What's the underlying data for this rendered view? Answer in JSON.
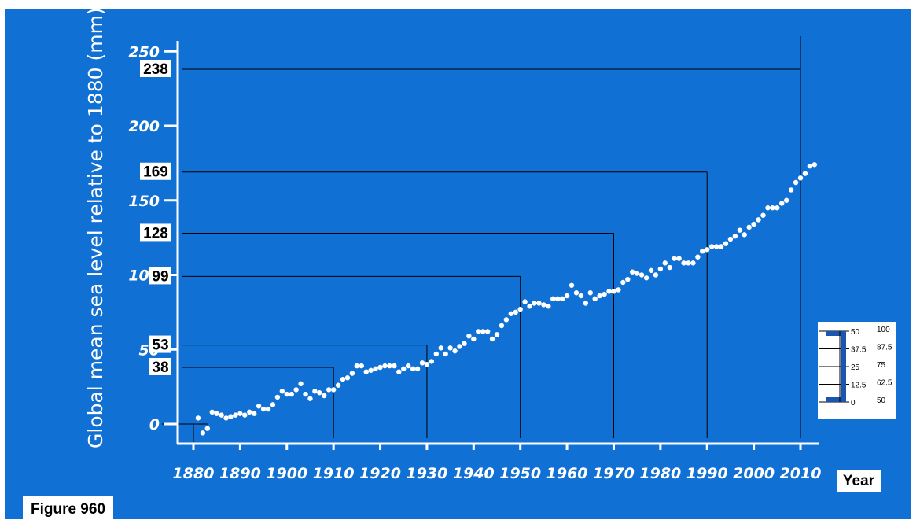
{
  "figure_label": "Figure 960",
  "chart_data": {
    "type": "scatter",
    "ylabel": "Global mean sea level relative to 1880 (mm)",
    "xlabel": "Year",
    "x_ticks": [
      1880,
      1890,
      1900,
      1910,
      1920,
      1930,
      1940,
      1950,
      1960,
      1970,
      1980,
      1990,
      2000,
      2010
    ],
    "y_ticks": [
      0,
      50,
      100,
      150,
      200,
      250
    ],
    "xlim": [
      1880,
      2013
    ],
    "ylim": [
      -10,
      255
    ],
    "marker_color": "#ffffff",
    "background_color": "#1170d4",
    "grid": false,
    "series": [
      {
        "points": [
          [
            1881,
            4
          ],
          [
            1882,
            -6
          ],
          [
            1883,
            -3
          ],
          [
            1884,
            8
          ],
          [
            1885,
            7
          ],
          [
            1886,
            6
          ],
          [
            1887,
            4
          ],
          [
            1888,
            5
          ],
          [
            1889,
            6
          ],
          [
            1890,
            7
          ],
          [
            1891,
            6
          ],
          [
            1892,
            8
          ],
          [
            1893,
            7
          ],
          [
            1894,
            12
          ],
          [
            1895,
            10
          ],
          [
            1896,
            10
          ],
          [
            1897,
            13
          ],
          [
            1898,
            18
          ],
          [
            1899,
            22
          ],
          [
            1900,
            20
          ],
          [
            1901,
            20
          ],
          [
            1902,
            23
          ],
          [
            1903,
            27
          ],
          [
            1904,
            20
          ],
          [
            1905,
            17
          ],
          [
            1906,
            22
          ],
          [
            1907,
            21
          ],
          [
            1908,
            19
          ],
          [
            1909,
            23
          ],
          [
            1910,
            23
          ],
          [
            1911,
            26
          ],
          [
            1912,
            30
          ],
          [
            1913,
            31
          ],
          [
            1914,
            34
          ],
          [
            1915,
            39
          ],
          [
            1916,
            39
          ],
          [
            1917,
            35
          ],
          [
            1918,
            36
          ],
          [
            1919,
            37
          ],
          [
            1920,
            38
          ],
          [
            1921,
            39
          ],
          [
            1922,
            39
          ],
          [
            1923,
            39
          ],
          [
            1924,
            35
          ],
          [
            1925,
            37
          ],
          [
            1926,
            39
          ],
          [
            1927,
            37
          ],
          [
            1928,
            37
          ],
          [
            1929,
            41
          ],
          [
            1930,
            40
          ],
          [
            1931,
            42
          ],
          [
            1932,
            47
          ],
          [
            1933,
            51
          ],
          [
            1934,
            47
          ],
          [
            1935,
            51
          ],
          [
            1936,
            49
          ],
          [
            1937,
            52
          ],
          [
            1938,
            54
          ],
          [
            1939,
            59
          ],
          [
            1940,
            57
          ],
          [
            1941,
            62
          ],
          [
            1942,
            62
          ],
          [
            1943,
            62
          ],
          [
            1944,
            57
          ],
          [
            1945,
            60
          ],
          [
            1946,
            66
          ],
          [
            1947,
            70
          ],
          [
            1948,
            74
          ],
          [
            1949,
            75
          ],
          [
            1950,
            77
          ],
          [
            1951,
            82
          ],
          [
            1952,
            79
          ],
          [
            1953,
            81
          ],
          [
            1954,
            81
          ],
          [
            1955,
            80
          ],
          [
            1956,
            79
          ],
          [
            1957,
            84
          ],
          [
            1958,
            84
          ],
          [
            1959,
            84
          ],
          [
            1960,
            86
          ],
          [
            1961,
            93
          ],
          [
            1962,
            88
          ],
          [
            1963,
            86
          ],
          [
            1964,
            81
          ],
          [
            1965,
            88
          ],
          [
            1966,
            84
          ],
          [
            1967,
            86
          ],
          [
            1968,
            87
          ],
          [
            1969,
            89
          ],
          [
            1970,
            89
          ],
          [
            1971,
            90
          ],
          [
            1972,
            95
          ],
          [
            1973,
            97
          ],
          [
            1974,
            102
          ],
          [
            1975,
            101
          ],
          [
            1976,
            100
          ],
          [
            1977,
            98
          ],
          [
            1978,
            103
          ],
          [
            1979,
            100
          ],
          [
            1980,
            104
          ],
          [
            1981,
            108
          ],
          [
            1982,
            105
          ],
          [
            1983,
            111
          ],
          [
            1984,
            111
          ],
          [
            1985,
            108
          ],
          [
            1986,
            108
          ],
          [
            1987,
            108
          ],
          [
            1988,
            112
          ],
          [
            1989,
            116
          ],
          [
            1990,
            117
          ],
          [
            1991,
            119
          ],
          [
            1992,
            119
          ],
          [
            1993,
            119
          ],
          [
            1994,
            121
          ],
          [
            1995,
            124
          ],
          [
            1996,
            126
          ],
          [
            1997,
            130
          ],
          [
            1998,
            127
          ],
          [
            1999,
            132
          ],
          [
            2000,
            134
          ],
          [
            2001,
            137
          ],
          [
            2002,
            140
          ],
          [
            2003,
            145
          ],
          [
            2004,
            145
          ],
          [
            2005,
            145
          ],
          [
            2006,
            148
          ],
          [
            2007,
            150
          ],
          [
            2008,
            157
          ],
          [
            2009,
            162
          ],
          [
            2010,
            165
          ],
          [
            2011,
            168
          ],
          [
            2012,
            173
          ],
          [
            2013,
            174
          ]
        ]
      }
    ],
    "callouts": [
      {
        "label": "238",
        "year": 2010,
        "value": 238
      },
      {
        "label": "169",
        "year": 1990,
        "value": 169
      },
      {
        "label": "128",
        "year": 1970,
        "value": 128
      },
      {
        "label": "99",
        "year": 1950,
        "value": 99
      },
      {
        "label": "53",
        "year": 1930,
        "value": 53
      },
      {
        "label": "38",
        "year": 1910,
        "value": 38
      }
    ],
    "inset": {
      "left_column": [
        "50",
        "37.5",
        "25",
        "12.5",
        "0"
      ],
      "right_column": [
        "100",
        "87.5",
        "75",
        "62.5",
        "50"
      ]
    }
  }
}
